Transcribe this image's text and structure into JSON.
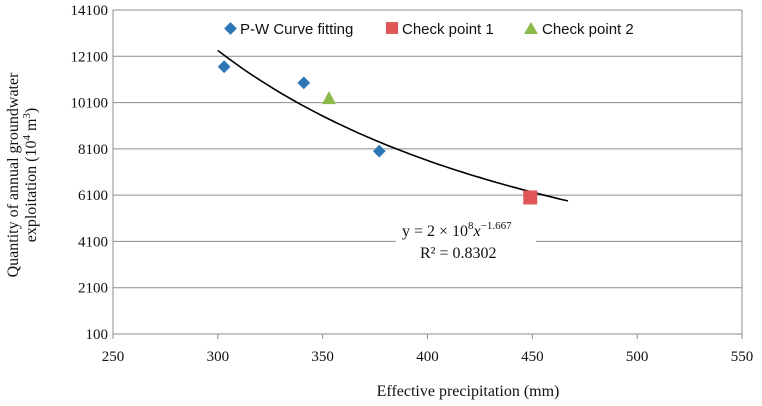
{
  "chart_data": {
    "type": "scatter",
    "xlabel": "Effective precipitation (mm)",
    "ylabel_line1": "Quantity of annual groundwater",
    "ylabel_line2_prefix": "exploitation (10",
    "ylabel_line2_sup1": "4",
    "ylabel_line2_mid": " m",
    "ylabel_line2_sup2": "3",
    "ylabel_line2_suffix": ")",
    "xlim": [
      250,
      550
    ],
    "ylim": [
      100,
      14100
    ],
    "xticks": [
      "250",
      "300",
      "350",
      "400",
      "450",
      "500",
      "550"
    ],
    "yticks": [
      "100",
      "2100",
      "4100",
      "6100",
      "8100",
      "10100",
      "12100",
      "14100"
    ],
    "grid": "horizontal",
    "legend_position": "top",
    "series": [
      {
        "name": "P-W Curve fitting",
        "marker": "diamond",
        "color": "#2E75B6",
        "points": [
          [
            303,
            11650
          ],
          [
            341,
            10950
          ],
          [
            377,
            8000
          ]
        ]
      },
      {
        "name": "Check point 1",
        "marker": "square",
        "color": "#E15759",
        "points": [
          [
            449,
            6000
          ]
        ]
      },
      {
        "name": "Check point 2",
        "marker": "triangle",
        "color": "#8DB94B",
        "points": [
          [
            353,
            10250
          ]
        ]
      }
    ],
    "fit": {
      "x_from": 300,
      "x_to": 467,
      "y_from": 12350,
      "y_to": 5850,
      "color": "#000000",
      "equation_prefix": "y = 2 × 10",
      "equation_sup1": "8",
      "equation_var": "x",
      "equation_sup2": "−1.667",
      "r2": "R² = 0.8302"
    }
  }
}
